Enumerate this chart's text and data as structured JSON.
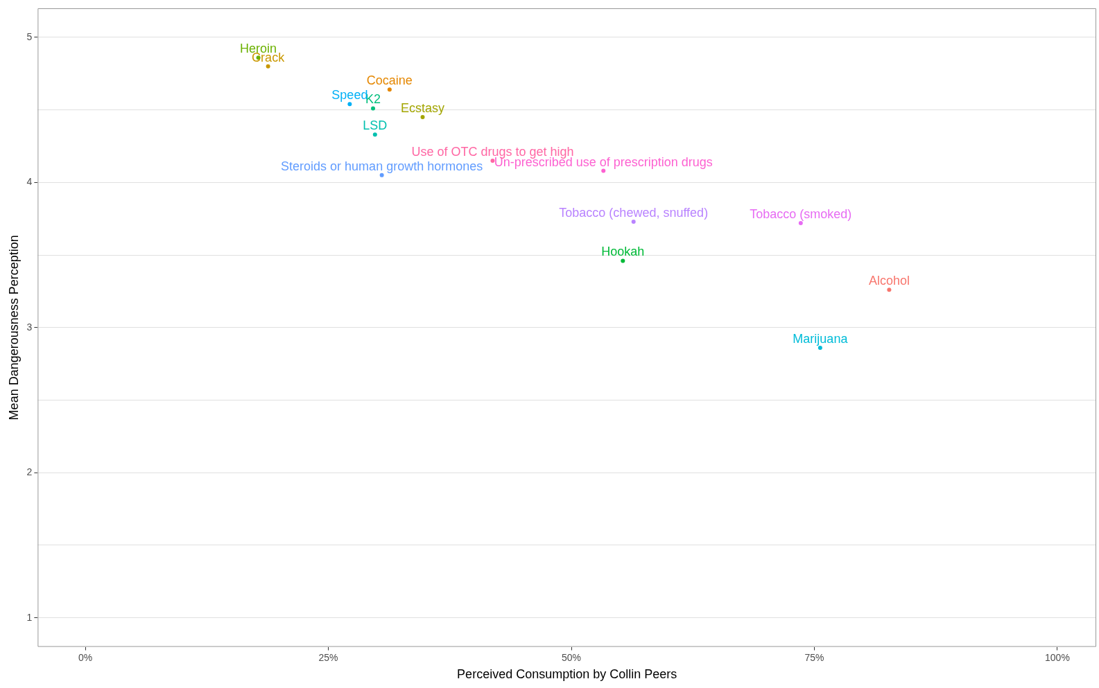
{
  "chart_data": {
    "type": "scatter",
    "xlabel": "Perceived Consumption by Collin Peers",
    "ylabel": "Mean Dangerousness Perception",
    "xlim": [
      -4.9,
      104
    ],
    "xticks": [
      {
        "value": 0,
        "label": "0%"
      },
      {
        "value": 25,
        "label": "25%"
      },
      {
        "value": 50,
        "label": "50%"
      },
      {
        "value": 75,
        "label": "75%"
      },
      {
        "value": 100,
        "label": "100%"
      }
    ],
    "ylim": [
      0.8,
      5.2
    ],
    "yticks": [
      1,
      {
        "value": 1.5,
        "label": null
      },
      2,
      {
        "value": 2.5,
        "label": null
      },
      3,
      {
        "value": 3.5,
        "label": null
      },
      4,
      {
        "value": 4.5,
        "label": null
      },
      5
    ],
    "grid": "y",
    "legend": false,
    "marker": "circle",
    "series": [
      {
        "name": "Alcohol",
        "color": "#f8766d",
        "x": [
          82.7
        ],
        "values": [
          3.26
        ]
      },
      {
        "name": "Cocaine",
        "color": "#e58700",
        "x": [
          31.3
        ],
        "values": [
          4.64
        ]
      },
      {
        "name": "Crack",
        "color": "#c99800",
        "x": [
          18.8
        ],
        "values": [
          4.8
        ]
      },
      {
        "name": "Ecstasy",
        "color": "#a3a500",
        "x": [
          34.7
        ],
        "values": [
          4.45
        ]
      },
      {
        "name": "Heroin",
        "color": "#6bb100",
        "x": [
          17.8
        ],
        "values": [
          4.86
        ]
      },
      {
        "name": "Hookah",
        "color": "#00ba38",
        "x": [
          55.3
        ],
        "values": [
          3.46
        ]
      },
      {
        "name": "K2",
        "color": "#00bf7d",
        "x": [
          29.6
        ],
        "values": [
          4.51
        ]
      },
      {
        "name": "LSD",
        "color": "#00c0af",
        "x": [
          29.8
        ],
        "values": [
          4.33
        ]
      },
      {
        "name": "Marijuana",
        "color": "#00bcd8",
        "x": [
          75.6
        ],
        "values": [
          2.86
        ]
      },
      {
        "name": "Speed",
        "color": "#00b0f6",
        "x": [
          27.2
        ],
        "values": [
          4.54
        ]
      },
      {
        "name": "Steroids or human growth hormones",
        "color": "#619cff",
        "x": [
          30.5
        ],
        "values": [
          4.05
        ]
      },
      {
        "name": "Tobacco (chewed, snuffed)",
        "color": "#b983ff",
        "x": [
          56.4
        ],
        "values": [
          3.73
        ]
      },
      {
        "name": "Tobacco (smoked)",
        "color": "#e76bf3",
        "x": [
          73.6
        ],
        "values": [
          3.72
        ]
      },
      {
        "name": "Un-prescribed use of prescription drugs",
        "color": "#fd61d1",
        "x": [
          53.3
        ],
        "values": [
          4.08
        ]
      },
      {
        "name": "Use of OTC drugs to get high",
        "color": "#ff67a4",
        "x": [
          41.9
        ],
        "values": [
          4.15
        ]
      }
    ]
  }
}
